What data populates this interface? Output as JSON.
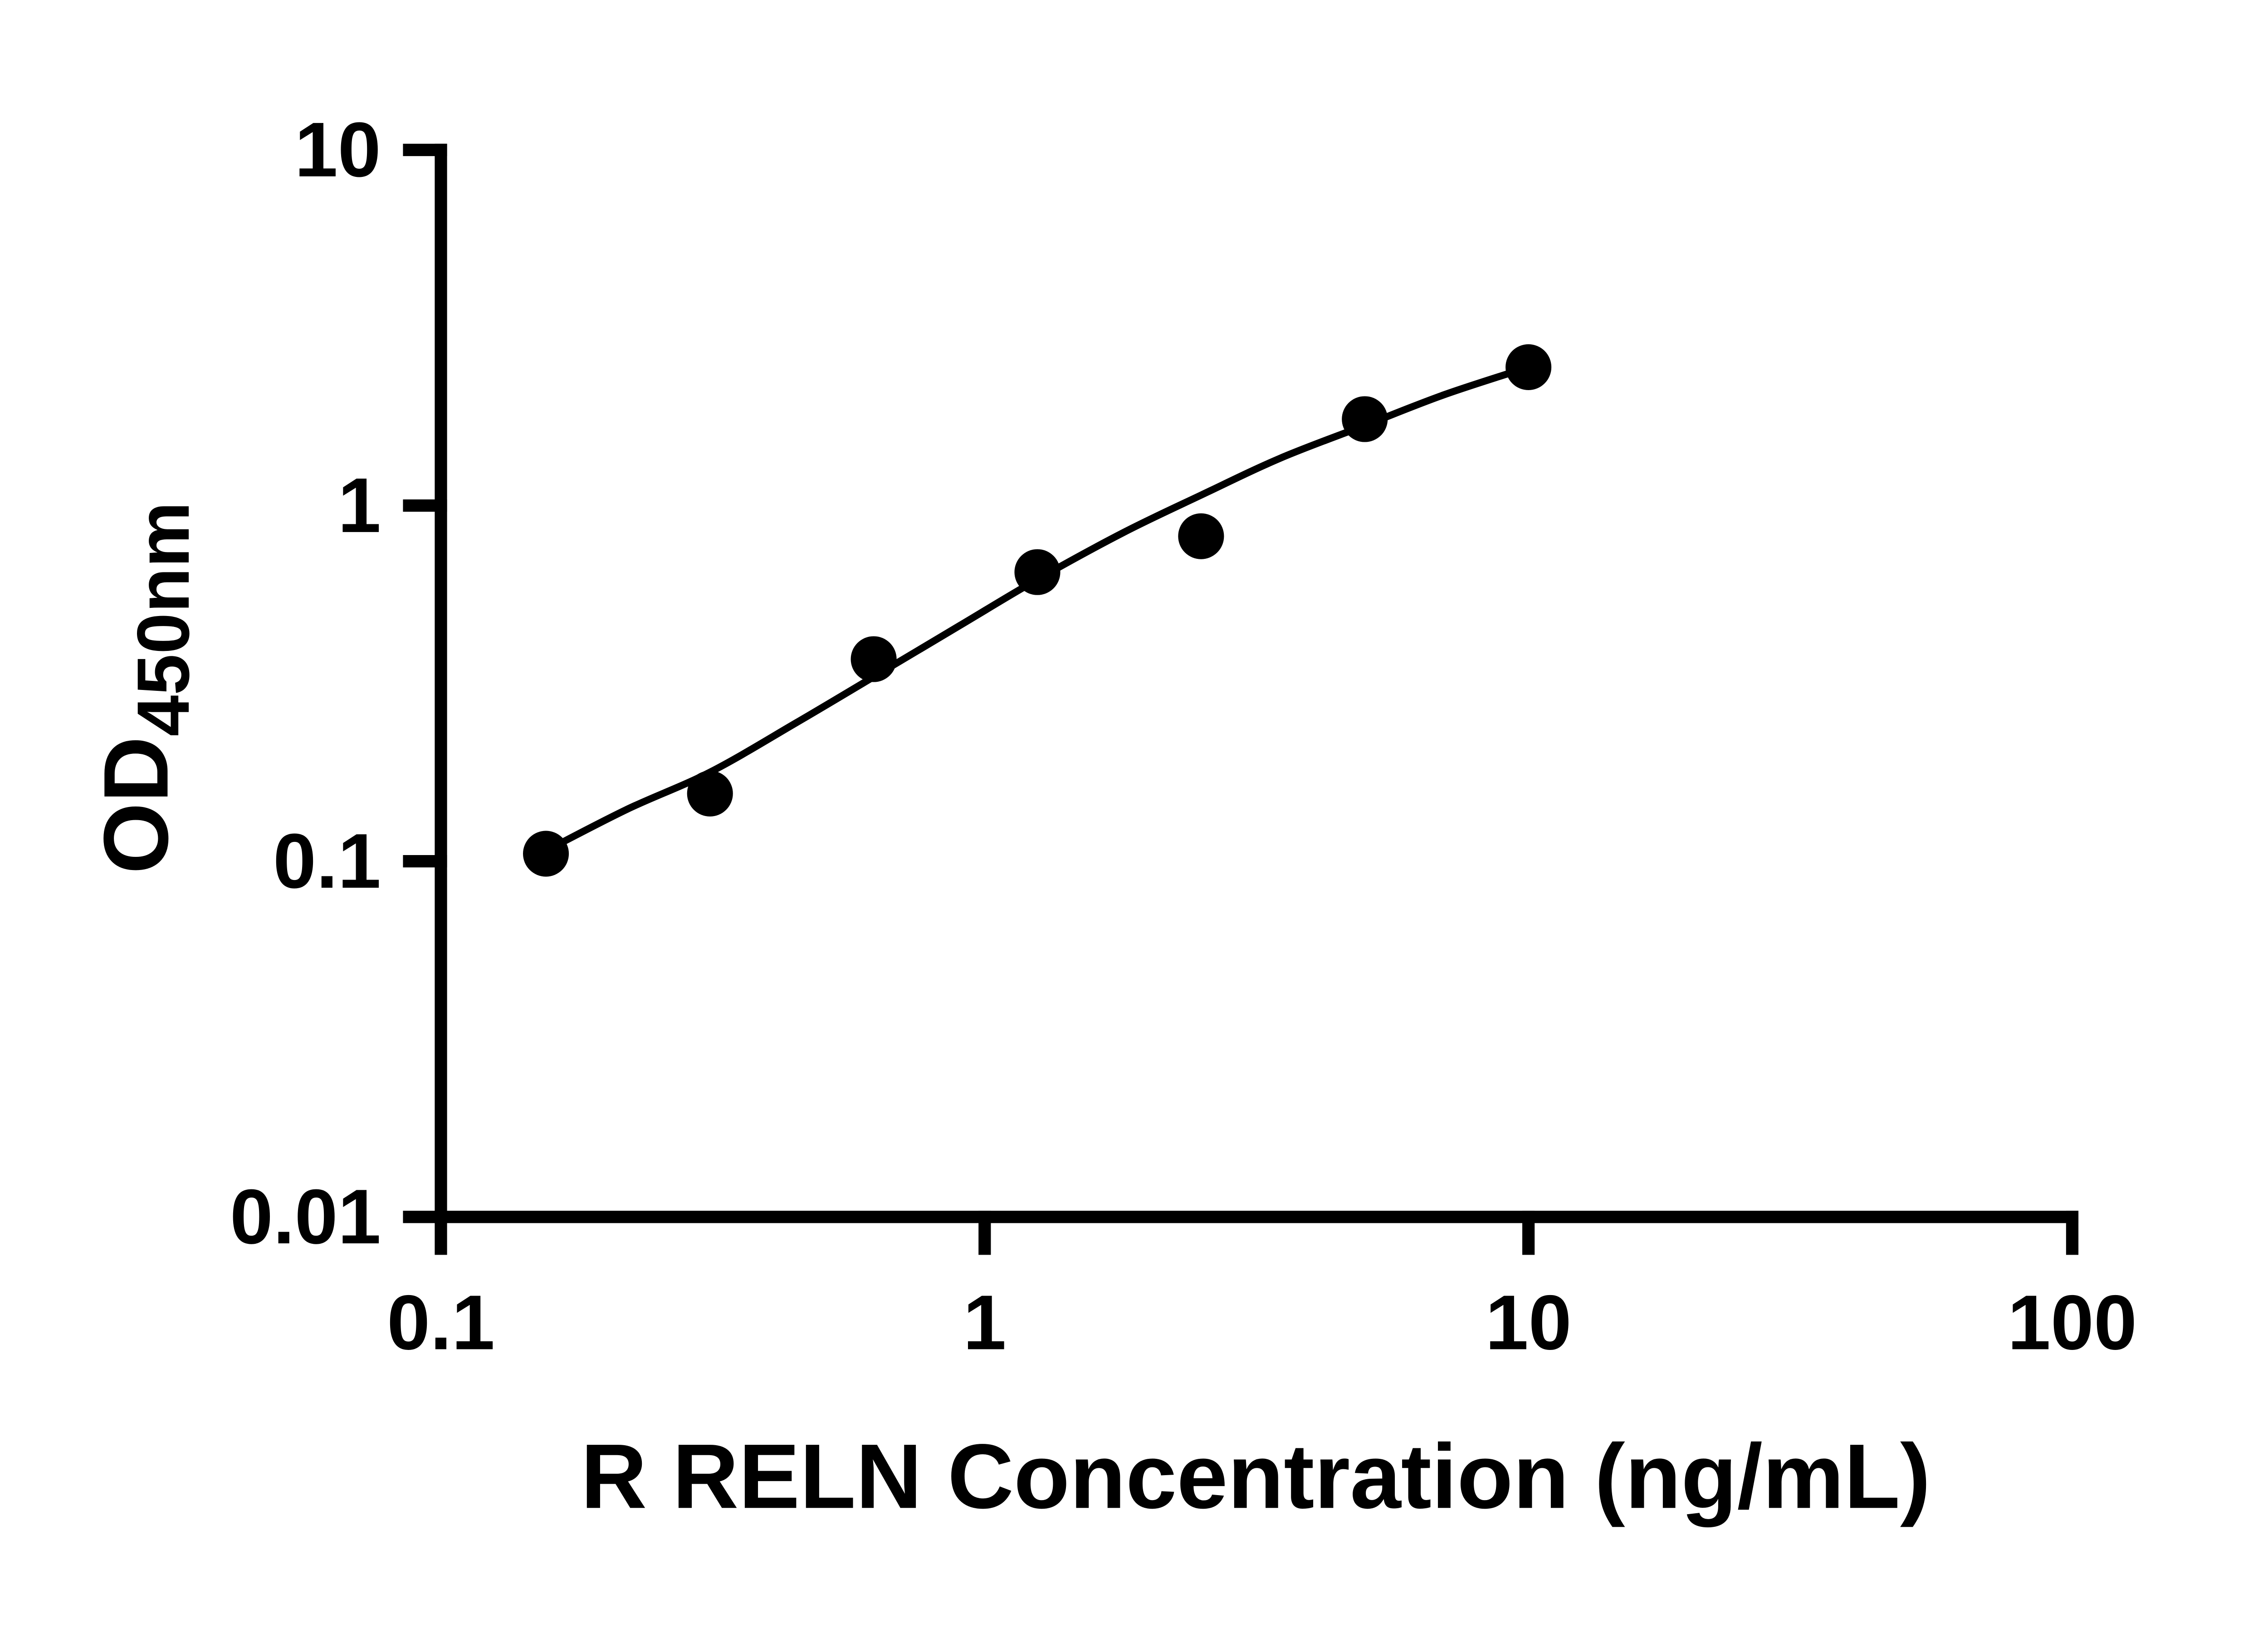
{
  "page": {
    "background": "#ffffff"
  },
  "chart_data": {
    "type": "scatter",
    "title": "",
    "xlabel": "R RELN Concentration (ng/mL)",
    "ylabel": "OD450nm",
    "ylabel_base": "OD",
    "ylabel_subscript": "450nm",
    "x_scale": "log",
    "y_scale": "log",
    "xlim": [
      0.1,
      100
    ],
    "ylim": [
      0.01,
      10
    ],
    "x_ticks": [
      0.1,
      1,
      10,
      100
    ],
    "x_tick_labels": [
      "0.1",
      "1",
      "10",
      "100"
    ],
    "y_ticks": [
      0.01,
      0.1,
      1,
      10
    ],
    "y_tick_labels": [
      "0.01",
      "0.1",
      "1",
      "10"
    ],
    "grid": false,
    "legend": false,
    "axis_color": "#000000",
    "marker_color": "#000000",
    "line_color": "#000000",
    "series": [
      {
        "name": "standard-curve-points",
        "type": "scatter",
        "marker": "circle",
        "points": [
          {
            "x": 0.156,
            "y": 0.105
          },
          {
            "x": 0.3125,
            "y": 0.155
          },
          {
            "x": 0.625,
            "y": 0.37
          },
          {
            "x": 1.25,
            "y": 0.65
          },
          {
            "x": 2.5,
            "y": 0.82
          },
          {
            "x": 5,
            "y": 1.75
          },
          {
            "x": 10,
            "y": 2.45
          }
        ]
      },
      {
        "name": "fit-line",
        "type": "line",
        "points": [
          {
            "x": 0.156,
            "y": 0.107
          },
          {
            "x": 0.22,
            "y": 0.14
          },
          {
            "x": 0.3125,
            "y": 0.178
          },
          {
            "x": 0.45,
            "y": 0.245
          },
          {
            "x": 0.625,
            "y": 0.33
          },
          {
            "x": 0.9,
            "y": 0.46
          },
          {
            "x": 1.25,
            "y": 0.62
          },
          {
            "x": 1.8,
            "y": 0.84
          },
          {
            "x": 2.5,
            "y": 1.07
          },
          {
            "x": 3.5,
            "y": 1.36
          },
          {
            "x": 5,
            "y": 1.68
          },
          {
            "x": 7,
            "y": 2.05
          },
          {
            "x": 10,
            "y": 2.45
          }
        ]
      }
    ]
  }
}
